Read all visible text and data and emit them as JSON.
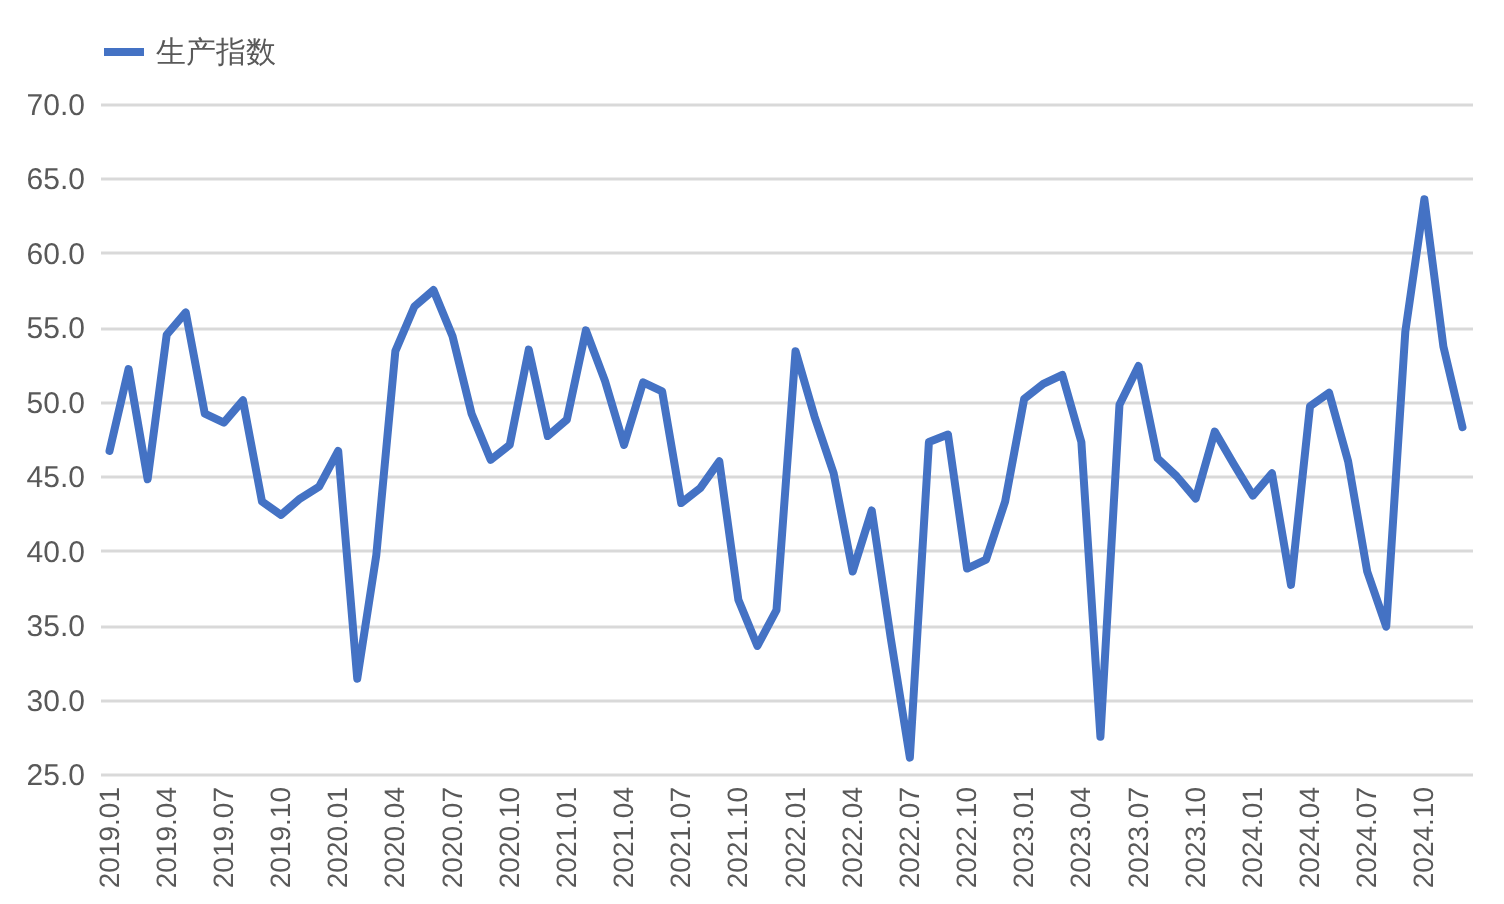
{
  "chart_data": {
    "type": "line",
    "categories": [
      "2019.01",
      null,
      null,
      "2019.04",
      null,
      null,
      "2019.07",
      null,
      null,
      "2019.10",
      null,
      null,
      "2020.01",
      null,
      null,
      "2020.04",
      null,
      null,
      "2020.07",
      null,
      null,
      "2020.10",
      null,
      null,
      "2021.01",
      null,
      null,
      "2021.04",
      null,
      null,
      "2021.07",
      null,
      null,
      "2021.10",
      null,
      null,
      "2022.01",
      null,
      null,
      "2022.04",
      null,
      null,
      "2022.07",
      null,
      null,
      "2022.10",
      null,
      null,
      "2023.01",
      null,
      null,
      "2023.04",
      null,
      null,
      "2023.07",
      null,
      null,
      "2023.10",
      null,
      null,
      "2024.01",
      null,
      null,
      "2024.04",
      null,
      null,
      "2024.07",
      null,
      null,
      "2024.10",
      null,
      null
    ],
    "series": [
      {
        "name": "生产指数",
        "color": "#4472c4",
        "values": [
          46.7,
          52.2,
          44.8,
          54.5,
          56.0,
          49.2,
          48.6,
          50.1,
          43.3,
          42.4,
          43.5,
          44.3,
          46.7,
          31.4,
          39.7,
          53.4,
          56.4,
          57.5,
          54.4,
          49.2,
          46.1,
          47.1,
          53.5,
          47.7,
          48.8,
          54.8,
          51.4,
          47.1,
          51.3,
          50.7,
          43.2,
          44.2,
          46.0,
          36.7,
          33.6,
          36.0,
          53.4,
          49.0,
          45.2,
          38.6,
          42.7,
          34.1,
          26.1,
          47.3,
          47.8,
          38.8,
          39.4,
          43.3,
          50.2,
          51.2,
          51.8,
          47.3,
          27.5,
          49.8,
          52.4,
          46.2,
          45.0,
          43.5,
          48.0,
          45.8,
          43.7,
          45.2,
          37.7,
          49.7,
          50.6,
          46.0,
          38.6,
          34.9,
          54.7,
          63.6,
          53.7,
          48.3
        ]
      }
    ],
    "ylim": [
      25,
      70
    ],
    "yticks": [
      {
        "value": 25,
        "label": "25.0"
      },
      {
        "value": 30,
        "label": "30.0"
      },
      {
        "value": 35,
        "label": "35.0"
      },
      {
        "value": 40,
        "label": "40.0"
      },
      {
        "value": 45,
        "label": "45.0"
      },
      {
        "value": 50,
        "label": "50.0"
      },
      {
        "value": 55,
        "label": "55.0"
      },
      {
        "value": 60,
        "label": "60.0"
      },
      {
        "value": 65,
        "label": "65.0"
      },
      {
        "value": 70,
        "label": "70.0"
      }
    ],
    "grid": "y",
    "legend": "top",
    "line_style": "solid",
    "marker": "none"
  }
}
